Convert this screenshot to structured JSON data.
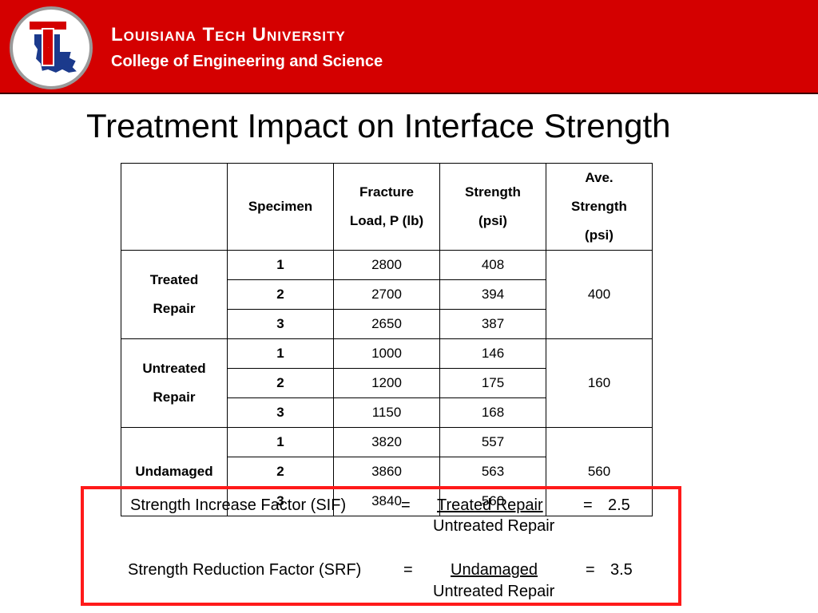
{
  "header": {
    "university": "Louisiana Tech University",
    "college": "College of Engineering and Science",
    "colors": {
      "background": "#d40000",
      "text": "#ffffff"
    },
    "logo": {
      "icon": "louisiana-tech-lt-logo-icon",
      "letter": "T"
    }
  },
  "slide": {
    "title": "Treatment Impact on Interface Strength"
  },
  "table": {
    "headers": {
      "group": "",
      "specimen": "Specimen",
      "fracture_line1": "Fracture",
      "fracture_line2": "Load, P (lb)",
      "strength_line1": "Strength",
      "strength_line2": "(psi)",
      "ave_line1": "Ave.",
      "ave_line2": "Strength",
      "ave_line3": "(psi)"
    },
    "groups": [
      {
        "label_line1": "Treated",
        "label_line2": "Repair",
        "average": "400",
        "rows": [
          {
            "specimen": "1",
            "load": "2800",
            "strength": "408"
          },
          {
            "specimen": "2",
            "load": "2700",
            "strength": "394"
          },
          {
            "specimen": "3",
            "load": "2650",
            "strength": "387"
          }
        ]
      },
      {
        "label_line1": "Untreated",
        "label_line2": "Repair",
        "average": "160",
        "rows": [
          {
            "specimen": "1",
            "load": "1000",
            "strength": "146"
          },
          {
            "specimen": "2",
            "load": "1200",
            "strength": "175"
          },
          {
            "specimen": "3",
            "load": "1150",
            "strength": "168"
          }
        ]
      },
      {
        "label_line1": "Undamaged",
        "label_line2": "",
        "average": "560",
        "rows": [
          {
            "specimen": "1",
            "load": "3820",
            "strength": "557"
          },
          {
            "specimen": "2",
            "load": "3860",
            "strength": "563"
          },
          {
            "specimen": "3",
            "load": "3840",
            "strength": "560"
          }
        ]
      }
    ]
  },
  "formulas": {
    "box_color": "#ff1a1a",
    "sif": {
      "label": "Strength Increase Factor (SIF)",
      "equals": "=",
      "numerator": "Treated Repair",
      "denominator": "Untreated Repair",
      "result_equals": "=",
      "result": "2.5"
    },
    "srf": {
      "label": "Strength Reduction Factor (SRF)",
      "equals": "=",
      "numerator": "Undamaged",
      "denominator": "Untreated Repair",
      "result_equals": "=",
      "result": "3.5"
    }
  }
}
